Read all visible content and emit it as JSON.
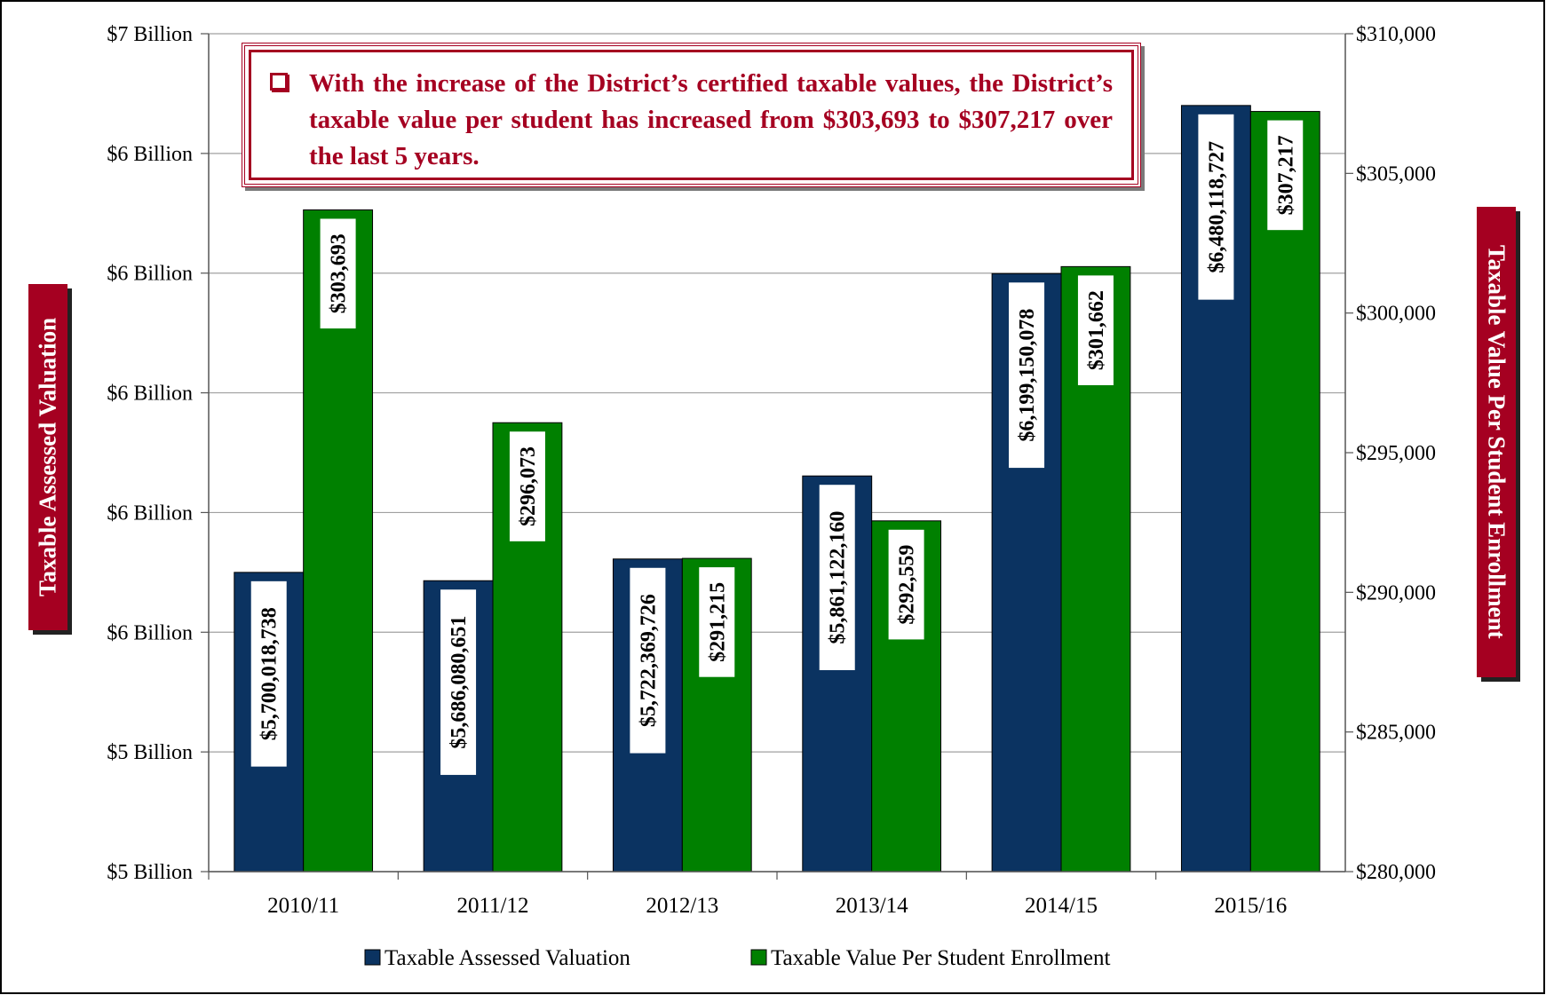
{
  "chart_data": {
    "type": "bar",
    "annotation": "With the increase of the District’s certified taxable values, the District’s taxable value per student has increased from $303,693 to $307,217 over the last 5 years.",
    "ylabel": "Taxable Assessed Valuation",
    "y2label": "Taxable Value Per Student Enrollment",
    "categories": [
      "2010/11",
      "2011/12",
      "2012/13",
      "2013/14",
      "2014/15",
      "2015/16"
    ],
    "series": [
      {
        "name": "Taxable Assessed Valuation",
        "color": "#0b3361",
        "values": [
          5700018738,
          5686080651,
          5722369726,
          5861122160,
          6199150078,
          6480118727
        ],
        "value_labels": [
          "$5,700,018,738",
          "$5,686,080,651",
          "$5,722,369,726",
          "$5,861,122,160",
          "$6,199,150,078",
          "$6,480,118,727"
        ]
      },
      {
        "name": "Taxable Value Per Student Enrollment",
        "color": "#008000",
        "axis": "y2",
        "values": [
          303693,
          296073,
          291215,
          292559,
          301662,
          307217
        ],
        "value_labels": [
          "$303,693",
          "$296,073",
          "$291,215",
          "$292,559",
          "$301,662",
          "$307,217"
        ]
      }
    ],
    "ylim": [
      5200000000,
      6600000000
    ],
    "yticks": [
      {
        "value": 5200000000,
        "label": "$5 Billion"
      },
      {
        "value": 5400000000,
        "label": "$5 Billion"
      },
      {
        "value": 5600000000,
        "label": "$6 Billion"
      },
      {
        "value": 5800000000,
        "label": "$6 Billion"
      },
      {
        "value": 6000000000,
        "label": "$6 Billion"
      },
      {
        "value": 6200000000,
        "label": "$6 Billion"
      },
      {
        "value": 6400000000,
        "label": "$6 Billion"
      },
      {
        "value": 6600000000,
        "label": "$7 Billion"
      }
    ],
    "y2lim": [
      280000,
      310000
    ],
    "y2ticks": [
      {
        "value": 280000,
        "label": "$280,000"
      },
      {
        "value": 285000,
        "label": "$285,000"
      },
      {
        "value": 290000,
        "label": "$290,000"
      },
      {
        "value": 295000,
        "label": "$295,000"
      },
      {
        "value": 300000,
        "label": "$300,000"
      },
      {
        "value": 305000,
        "label": "$305,000"
      },
      {
        "value": 310000,
        "label": "$310,000"
      }
    ],
    "grid": true,
    "legend": "bottom"
  }
}
